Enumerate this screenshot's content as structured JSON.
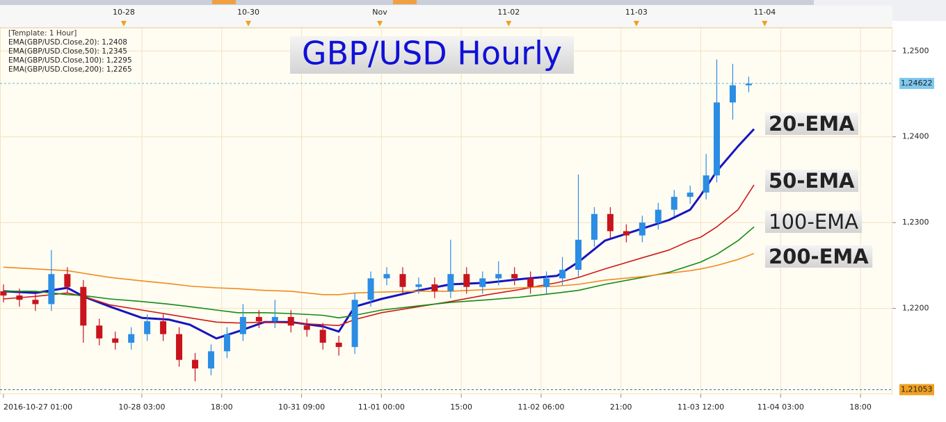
{
  "chart_data": {
    "type": "candlestick",
    "title": "GBP/USD Hourly",
    "template": "[Template: 1 Hour]",
    "xlim": [
      0,
      167
    ],
    "ylim": [
      1.21,
      1.2527
    ],
    "yticks": [
      {
        "value": 1.25,
        "label": "1,2500"
      },
      {
        "value": 1.24,
        "label": "1,2400"
      },
      {
        "value": 1.23,
        "label": "1,2300"
      },
      {
        "value": 1.22,
        "label": "1,2200"
      }
    ],
    "xticks": [
      {
        "value": 0,
        "label": "2016-10-27 01:00"
      },
      {
        "value": 26,
        "label": "10-28 03:00"
      },
      {
        "value": 41,
        "label": "18:00"
      },
      {
        "value": 56,
        "label": "10-31 09:00"
      },
      {
        "value": 71,
        "label": "11-01 00:00"
      },
      {
        "value": 86,
        "label": "15:00"
      },
      {
        "value": 101,
        "label": "11-02 06:00"
      },
      {
        "value": 116,
        "label": "21:00"
      },
      {
        "value": 131,
        "label": "11-03 12:00"
      },
      {
        "value": 146,
        "label": "11-04 03:00"
      },
      {
        "value": 161,
        "label": "18:00"
      }
    ],
    "top_ticks": [
      {
        "value": 22.6,
        "label": "10-28"
      },
      {
        "value": 46,
        "label": "10-30"
      },
      {
        "value": 70.7,
        "label": "Nov"
      },
      {
        "value": 94.9,
        "label": "11-02"
      },
      {
        "value": 118.9,
        "label": "11-03"
      },
      {
        "value": 143,
        "label": "11-04"
      }
    ],
    "grid": true,
    "price_lines": [
      {
        "value": 1.24622,
        "label": "1,24622",
        "color": "#7fc8f0"
      },
      {
        "value": 1.21053,
        "label": "1,21053",
        "color": "#f0a020"
      }
    ],
    "candles": {
      "up_color": "#2b8de3",
      "down_color": "#c8141c",
      "x": [
        0,
        3,
        6,
        9,
        12,
        15,
        18,
        21,
        24,
        27,
        30,
        33,
        36,
        39,
        42,
        45,
        48,
        51,
        54,
        57,
        60,
        63,
        66,
        69,
        72,
        75,
        78,
        81,
        84,
        87,
        90,
        93,
        96,
        99,
        102,
        105,
        108,
        111,
        114,
        117,
        120,
        123,
        126,
        129,
        132,
        134,
        137,
        140
      ],
      "open": [
        1.222,
        1.2215,
        1.221,
        1.2205,
        1.224,
        1.2225,
        1.218,
        1.2165,
        1.216,
        1.217,
        1.2185,
        1.217,
        1.214,
        1.213,
        1.215,
        1.217,
        1.219,
        1.2185,
        1.219,
        1.218,
        1.2175,
        1.216,
        1.2155,
        1.221,
        1.2235,
        1.224,
        1.2225,
        1.2228,
        1.222,
        1.224,
        1.2225,
        1.2235,
        1.224,
        1.2235,
        1.2225,
        1.2235,
        1.2245,
        1.228,
        1.231,
        1.229,
        1.2285,
        1.23,
        1.2315,
        1.233,
        1.2335,
        1.2355,
        1.244,
        1.246
      ],
      "high": [
        1.2228,
        1.2223,
        1.2218,
        1.2268,
        1.2248,
        1.2233,
        1.2188,
        1.2173,
        1.2178,
        1.2193,
        1.2193,
        1.2178,
        1.2148,
        1.2158,
        1.2178,
        1.2205,
        1.2198,
        1.221,
        1.2198,
        1.2188,
        1.2183,
        1.2168,
        1.2218,
        1.2243,
        1.2248,
        1.2248,
        1.2236,
        1.2236,
        1.228,
        1.2248,
        1.2243,
        1.2255,
        1.2248,
        1.2243,
        1.2243,
        1.226,
        1.2356,
        1.2318,
        1.2318,
        1.2298,
        1.2308,
        1.2323,
        1.2338,
        1.2343,
        1.238,
        1.249,
        1.2485,
        1.247
      ],
      "low": [
        1.2207,
        1.2202,
        1.2197,
        1.2197,
        1.2217,
        1.216,
        1.2157,
        1.2152,
        1.2152,
        1.2162,
        1.2162,
        1.2132,
        1.2115,
        1.2122,
        1.2142,
        1.2162,
        1.2177,
        1.2177,
        1.2172,
        1.2167,
        1.2152,
        1.2145,
        1.2147,
        1.2202,
        1.2227,
        1.2217,
        1.2217,
        1.2212,
        1.2212,
        1.2217,
        1.2217,
        1.2227,
        1.2227,
        1.2217,
        1.2217,
        1.2227,
        1.2237,
        1.2272,
        1.2282,
        1.2277,
        1.2277,
        1.2292,
        1.2307,
        1.2322,
        1.2327,
        1.2347,
        1.242,
        1.2452
      ],
      "close": [
        1.2215,
        1.221,
        1.2205,
        1.224,
        1.2225,
        1.218,
        1.2165,
        1.216,
        1.217,
        1.2185,
        1.217,
        1.214,
        1.213,
        1.215,
        1.217,
        1.219,
        1.2185,
        1.219,
        1.218,
        1.2175,
        1.216,
        1.2155,
        1.221,
        1.2235,
        1.224,
        1.2225,
        1.2228,
        1.222,
        1.224,
        1.2225,
        1.2235,
        1.224,
        1.2235,
        1.2225,
        1.2235,
        1.2245,
        1.228,
        1.231,
        1.229,
        1.2285,
        1.23,
        1.2315,
        1.233,
        1.2335,
        1.2355,
        1.244,
        1.246,
        1.2462
      ]
    },
    "x": [
      0,
      6,
      12,
      15,
      20,
      26,
      31,
      35,
      40,
      44,
      49,
      54,
      60,
      63,
      66,
      71,
      78,
      84,
      91,
      97,
      104,
      108,
      113,
      120,
      125,
      129,
      131,
      134,
      138,
      141
    ],
    "series": [
      {
        "name": "EMA(GBP/USD.Close,20): 1,2408",
        "color": "#1515c0",
        "width": 3,
        "values": [
          1.222,
          1.2218,
          1.2224,
          1.2214,
          1.2202,
          1.2189,
          1.2187,
          1.2181,
          1.2165,
          1.2173,
          1.2184,
          1.2184,
          1.2179,
          1.2173,
          1.2202,
          1.2211,
          1.2221,
          1.2228,
          1.223,
          1.2234,
          1.2238,
          1.2254,
          1.2279,
          1.2293,
          1.2303,
          1.2315,
          1.2332,
          1.236,
          1.2389,
          1.2409
        ]
      },
      {
        "name": "EMA(GBP/USD.Close,50): 1,2345",
        "color": "#d01818",
        "width": 1.6,
        "values": [
          1.2211,
          1.2214,
          1.2218,
          1.2214,
          1.2204,
          1.2198,
          1.2193,
          1.2189,
          1.2184,
          1.2183,
          1.2184,
          1.2183,
          1.2181,
          1.218,
          1.2187,
          1.2195,
          1.2202,
          1.2208,
          1.2216,
          1.2222,
          1.223,
          1.2236,
          1.2246,
          1.2259,
          1.2268,
          1.2279,
          1.2283,
          1.2295,
          1.2315,
          1.2344
        ]
      },
      {
        "name": "EMA(GBP/USD.Close,100): 1,2295",
        "color": "#138a13",
        "width": 1.6,
        "values": [
          1.222,
          1.222,
          1.2216,
          1.2215,
          1.2211,
          1.2208,
          1.2205,
          1.2202,
          1.2198,
          1.2195,
          1.2195,
          1.2194,
          1.2192,
          1.2189,
          1.2192,
          1.2198,
          1.2203,
          1.2207,
          1.221,
          1.2213,
          1.2218,
          1.2221,
          1.2228,
          1.2236,
          1.2242,
          1.225,
          1.2254,
          1.2263,
          1.2279,
          1.2295
        ]
      },
      {
        "name": "EMA(GBP/USD.Close,200): 1,2265",
        "color": "#f08a1c",
        "width": 1.6,
        "values": [
          1.2248,
          1.2246,
          1.2244,
          1.2241,
          1.2236,
          1.2232,
          1.2229,
          1.2226,
          1.2224,
          1.2223,
          1.2221,
          1.222,
          1.2216,
          1.2216,
          1.2218,
          1.2219,
          1.222,
          1.222,
          1.2222,
          1.2224,
          1.2226,
          1.2228,
          1.2233,
          1.2237,
          1.2241,
          1.2244,
          1.2246,
          1.225,
          1.2257,
          1.2264
        ]
      }
    ],
    "annotations": [
      {
        "text": "20-EMA",
        "color": "#1010c8"
      },
      {
        "text": "50-EMA",
        "color": "#e01010"
      },
      {
        "text": "100-EMA",
        "color": "#128a12"
      },
      {
        "text": "200-EMA",
        "color": "#f07010"
      }
    ]
  }
}
